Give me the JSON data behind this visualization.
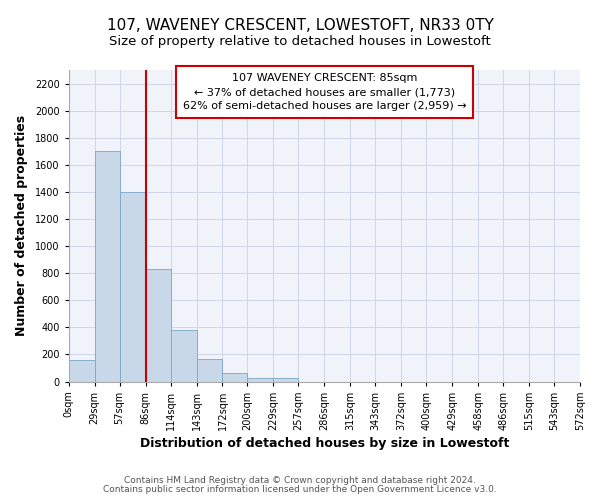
{
  "title": "107, WAVENEY CRESCENT, LOWESTOFT, NR33 0TY",
  "subtitle": "Size of property relative to detached houses in Lowestoft",
  "xlabel": "Distribution of detached houses by size in Lowestoft",
  "ylabel": "Number of detached properties",
  "bar_edges": [
    0,
    29,
    57,
    86,
    114,
    143,
    172,
    200,
    229,
    257,
    286,
    315,
    343,
    372,
    400,
    429,
    458,
    486,
    515,
    543,
    572
  ],
  "bar_heights": [
    160,
    1700,
    1400,
    830,
    380,
    165,
    65,
    25,
    25,
    0,
    0,
    0,
    0,
    0,
    0,
    0,
    0,
    0,
    0,
    0
  ],
  "bar_color": "#c8d8e8",
  "bar_edge_color": "#7aa8c8",
  "property_line_x": 86,
  "property_line_color": "#cc0000",
  "ylim": [
    0,
    2300
  ],
  "yticks": [
    0,
    200,
    400,
    600,
    800,
    1000,
    1200,
    1400,
    1600,
    1800,
    2000,
    2200
  ],
  "xtick_labels": [
    "0sqm",
    "29sqm",
    "57sqm",
    "86sqm",
    "114sqm",
    "143sqm",
    "172sqm",
    "200sqm",
    "229sqm",
    "257sqm",
    "286sqm",
    "315sqm",
    "343sqm",
    "372sqm",
    "400sqm",
    "429sqm",
    "458sqm",
    "486sqm",
    "515sqm",
    "543sqm",
    "572sqm"
  ],
  "annotation_line1": "107 WAVENEY CRESCENT: 85sqm",
  "annotation_line2": "← 37% of detached houses are smaller (1,773)",
  "annotation_line3": "62% of semi-detached houses are larger (2,959) →",
  "footer_line1": "Contains HM Land Registry data © Crown copyright and database right 2024.",
  "footer_line2": "Contains public sector information licensed under the Open Government Licence v3.0.",
  "background_color": "#ffffff",
  "plot_bg_color": "#f0f4fa",
  "grid_color": "#d0d8e8",
  "title_fontsize": 11,
  "subtitle_fontsize": 9.5,
  "axis_label_fontsize": 9,
  "tick_fontsize": 7,
  "footer_fontsize": 6.5,
  "ann_fontsize": 8
}
